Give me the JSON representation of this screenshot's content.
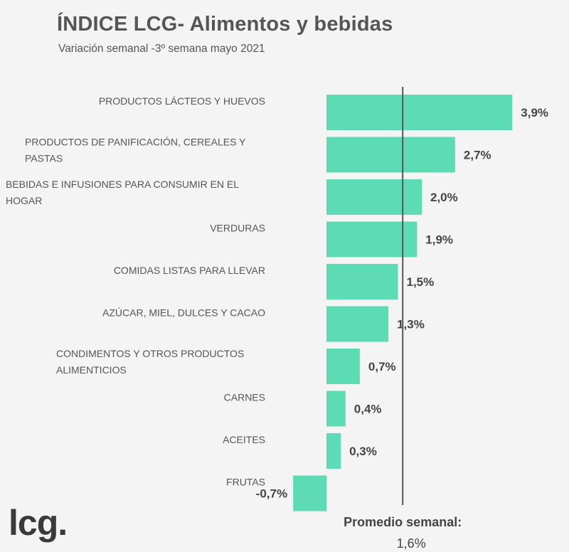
{
  "chart_data": {
    "type": "bar",
    "orientation": "horizontal",
    "title": "ÍNDICE LCG- Alimentos y bebidas",
    "subtitle": "Variación semanal -3º semana mayo 2021",
    "categories": [
      [
        "PRODUCTOS LÁCTEOS Y HUEVOS"
      ],
      [
        "PRODUCTOS DE PANIFICACIÓN, CEREALES Y",
        "PASTAS"
      ],
      [
        "BEBIDAS E INFUSIONES PARA CONSUMIR EN EL",
        "HOGAR"
      ],
      [
        "VERDURAS"
      ],
      [
        "COMIDAS LISTAS PARA LLEVAR"
      ],
      [
        "AZÚCAR, MIEL, DULCES Y CACAO"
      ],
      [
        "CONDIMENTOS Y OTROS PRODUCTOS",
        "ALIMENTICIOS"
      ],
      [
        "CARNES"
      ],
      [
        "ACEITES"
      ],
      [
        "FRUTAS"
      ]
    ],
    "values": [
      3.9,
      2.7,
      2.0,
      1.9,
      1.5,
      1.3,
      0.7,
      0.4,
      0.3,
      -0.7
    ],
    "value_labels": [
      "3,9%",
      "2,7%",
      "2,0%",
      "1,9%",
      "1,5%",
      "1,3%",
      "0,7%",
      "0,4%",
      "0,3%",
      "-0,7%"
    ],
    "bar_color": "#5ddbb4",
    "reference_line": {
      "value": 1.6,
      "label": "Promedio semanal:",
      "value_label": "1,6%",
      "color": "#555555"
    }
  },
  "logo": {
    "text": "lcg."
  }
}
